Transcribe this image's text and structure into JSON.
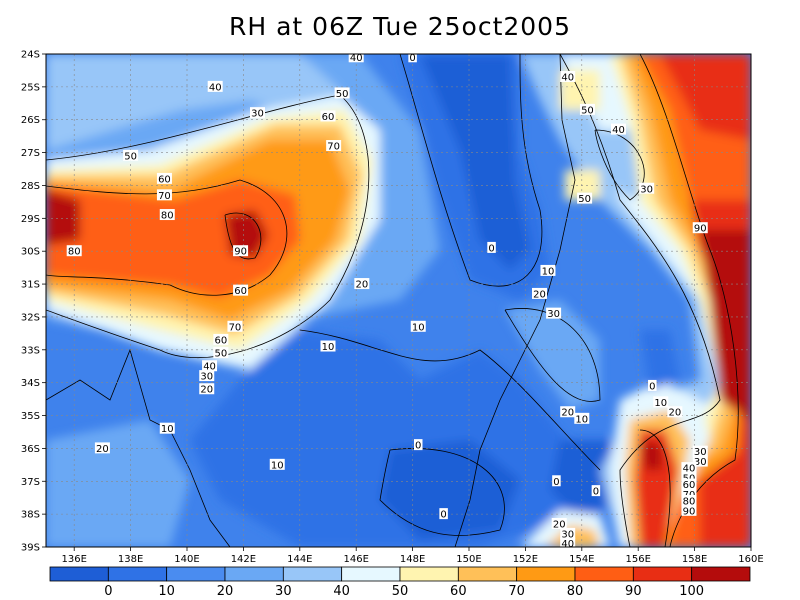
{
  "title": "RH at 06Z Tue 25oct2005",
  "chart_data": {
    "type": "heatmap",
    "variable": "RH",
    "x_ticks": [
      "136E",
      "138E",
      "140E",
      "142E",
      "144E",
      "146E",
      "148E",
      "150E",
      "152E",
      "154E",
      "156E",
      "158E",
      "160E"
    ],
    "y_ticks": [
      "24S",
      "25S",
      "26S",
      "27S",
      "28S",
      "29S",
      "30S",
      "31S",
      "32S",
      "33S",
      "34S",
      "35S",
      "36S",
      "37S",
      "38S",
      "39S"
    ],
    "lon_range": [
      135,
      160
    ],
    "lat_range": [
      -39,
      -24
    ],
    "grid": true,
    "colorbar": {
      "labels": [
        "0",
        "10",
        "20",
        "30",
        "40",
        "50",
        "60",
        "70",
        "80",
        "90",
        "100"
      ],
      "colors": [
        "#1e5ed6",
        "#2f72e6",
        "#4a8cf0",
        "#6aa8f4",
        "#98c6f8",
        "#e6f8ff",
        "#fff4b0",
        "#ffc058",
        "#ff9a14",
        "#ff5e14",
        "#e82e14",
        "#b40c0c"
      ]
    },
    "contour_labels": [
      {
        "text": "40",
        "lon": 141,
        "lat": -25
      },
      {
        "text": "30",
        "lon": 142.5,
        "lat": -25.8
      },
      {
        "text": "50",
        "lon": 145.5,
        "lat": -25.2
      },
      {
        "text": "60",
        "lon": 145,
        "lat": -25.9
      },
      {
        "text": "70",
        "lon": 145.2,
        "lat": -26.8
      },
      {
        "text": "50",
        "lon": 138,
        "lat": -27.1
      },
      {
        "text": "60",
        "lon": 139.2,
        "lat": -27.8
      },
      {
        "text": "70",
        "lon": 139.2,
        "lat": -28.3
      },
      {
        "text": "80",
        "lon": 139.3,
        "lat": -28.9
      },
      {
        "text": "90",
        "lon": 141.9,
        "lat": -30
      },
      {
        "text": "80",
        "lon": 136,
        "lat": -30
      },
      {
        "text": "60",
        "lon": 141.9,
        "lat": -31.2
      },
      {
        "text": "70",
        "lon": 141.7,
        "lat": -32.3
      },
      {
        "text": "60",
        "lon": 141.2,
        "lat": -32.7
      },
      {
        "text": "50",
        "lon": 141.2,
        "lat": -33.1
      },
      {
        "text": "40",
        "lon": 140.8,
        "lat": -33.5
      },
      {
        "text": "30",
        "lon": 140.7,
        "lat": -33.8
      },
      {
        "text": "20",
        "lon": 140.7,
        "lat": -34.2
      },
      {
        "text": "20",
        "lon": 146.2,
        "lat": -31
      },
      {
        "text": "10",
        "lon": 148.2,
        "lat": -32.3
      },
      {
        "text": "10",
        "lon": 145,
        "lat": -32.9
      },
      {
        "text": "0",
        "lon": 150.8,
        "lat": -29.9
      },
      {
        "text": "10",
        "lon": 152.8,
        "lat": -30.6
      },
      {
        "text": "20",
        "lon": 152.5,
        "lat": -31.3
      },
      {
        "text": "30",
        "lon": 153,
        "lat": -31.9
      },
      {
        "text": "40",
        "lon": 153.5,
        "lat": -24.7
      },
      {
        "text": "50",
        "lon": 154.2,
        "lat": -25.7
      },
      {
        "text": "40",
        "lon": 155.3,
        "lat": -26.3
      },
      {
        "text": "30",
        "lon": 156.3,
        "lat": -28.1
      },
      {
        "text": "50",
        "lon": 154.1,
        "lat": -28.4
      },
      {
        "text": "90",
        "lon": 158.2,
        "lat": -29.3
      },
      {
        "text": "0",
        "lon": 156.5,
        "lat": -34.1
      },
      {
        "text": "10",
        "lon": 156.8,
        "lat": -34.6
      },
      {
        "text": "20",
        "lon": 157.3,
        "lat": -34.9
      },
      {
        "text": "20",
        "lon": 153.5,
        "lat": -34.9
      },
      {
        "text": "10",
        "lon": 154,
        "lat": -35.1
      },
      {
        "text": "10",
        "lon": 139.3,
        "lat": -35.4
      },
      {
        "text": "20",
        "lon": 137,
        "lat": -36
      },
      {
        "text": "0",
        "lon": 148.2,
        "lat": -35.9
      },
      {
        "text": "10",
        "lon": 143.2,
        "lat": -36.5
      },
      {
        "text": "0",
        "lon": 153.1,
        "lat": -37
      },
      {
        "text": "0",
        "lon": 154.5,
        "lat": -37.3
      },
      {
        "text": "0",
        "lon": 149.1,
        "lat": -38
      },
      {
        "text": "30",
        "lon": 158.2,
        "lat": -36.1
      },
      {
        "text": "30",
        "lon": 158.2,
        "lat": -36.4
      },
      {
        "text": "40",
        "lon": 157.8,
        "lat": -36.6
      },
      {
        "text": "50",
        "lon": 157.8,
        "lat": -36.9
      },
      {
        "text": "60",
        "lon": 157.8,
        "lat": -37.1
      },
      {
        "text": "70",
        "lon": 157.8,
        "lat": -37.4
      },
      {
        "text": "80",
        "lon": 157.8,
        "lat": -37.6
      },
      {
        "text": "90",
        "lon": 157.8,
        "lat": -37.9
      },
      {
        "text": "20",
        "lon": 153.2,
        "lat": -38.3
      },
      {
        "text": "30",
        "lon": 153.5,
        "lat": -38.6
      },
      {
        "text": "40",
        "lon": 153.5,
        "lat": -38.9
      },
      {
        "text": "40",
        "lon": 146,
        "lat": -24.1
      },
      {
        "text": "0",
        "lon": 148,
        "lat": -24.1
      }
    ]
  }
}
